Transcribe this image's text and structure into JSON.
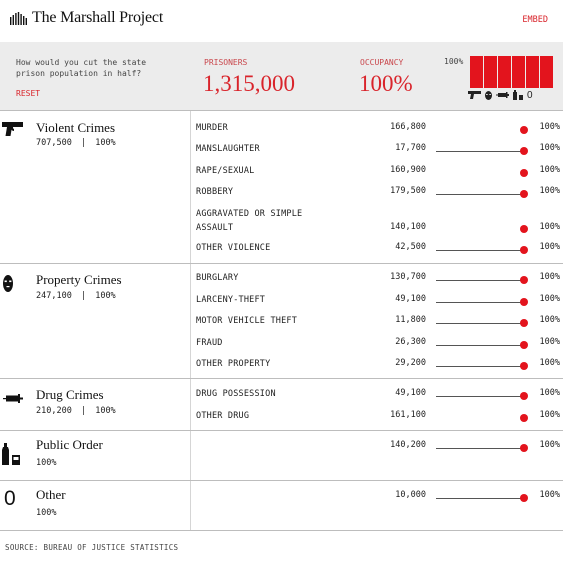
{
  "header": {
    "logo_text": "The Marshall Project",
    "embed_label": "EMBED"
  },
  "control": {
    "question": "How would you cut the state prison population in half?",
    "reset_label": "RESET",
    "prisoners_label": "PRISONERS",
    "prisoners_value": "1,315,000",
    "occupancy_label": "OCCUPANCY",
    "occupancy_value": "100%",
    "chart_max_label": "100%",
    "bar_levels": [
      1.0,
      1.0,
      1.0,
      1.0,
      1.0,
      1.0
    ],
    "bar_icons": [
      "gun-icon",
      "mask-icon",
      "syringe-icon",
      "bottle-icon",
      "zero-icon"
    ],
    "zero_glyph": "0"
  },
  "groups": [
    {
      "name": "Violent Crimes",
      "count": "707,500",
      "sep": "|",
      "pct": "100%",
      "icon": "gun-icon",
      "rows": [
        {
          "label": "MURDER",
          "value": "166,800",
          "pct": "100%",
          "level": 1.0
        },
        {
          "label": "MANSLAUGHTER",
          "value": "17,700",
          "pct": "100%",
          "level": 1.0
        },
        {
          "label": "RAPE/SEXUAL",
          "value": "160,900",
          "pct": "100%",
          "level": 1.0
        },
        {
          "label": "ROBBERY",
          "value": "179,500",
          "pct": "100%",
          "level": 1.0
        },
        {
          "label": "AGGRAVATED OR SIMPLE ASSAULT",
          "value": "140,100",
          "pct": "100%",
          "level": 1.0
        },
        {
          "label": "OTHER VIOLENCE",
          "value": "42,500",
          "pct": "100%",
          "level": 1.0
        }
      ]
    },
    {
      "name": "Property Crimes",
      "count": "247,100",
      "sep": "|",
      "pct": "100%",
      "icon": "mask-icon",
      "rows": [
        {
          "label": "BURGLARY",
          "value": "130,700",
          "pct": "100%",
          "level": 1.0
        },
        {
          "label": "LARCENY-THEFT",
          "value": "49,100",
          "pct": "100%",
          "level": 1.0
        },
        {
          "label": "MOTOR VEHICLE THEFT",
          "value": "11,800",
          "pct": "100%",
          "level": 1.0
        },
        {
          "label": "FRAUD",
          "value": "26,300",
          "pct": "100%",
          "level": 1.0
        },
        {
          "label": "OTHER PROPERTY",
          "value": "29,200",
          "pct": "100%",
          "level": 1.0
        }
      ]
    },
    {
      "name": "Drug Crimes",
      "count": "210,200",
      "sep": "|",
      "pct": "100%",
      "icon": "syringe-icon",
      "rows": [
        {
          "label": "DRUG POSSESSION",
          "value": "49,100",
          "pct": "100%",
          "level": 1.0
        },
        {
          "label": "OTHER DRUG",
          "value": "161,100",
          "pct": "100%",
          "level": 1.0
        }
      ]
    },
    {
      "name": "Public Order",
      "pct": "100%",
      "icon": "bottle-icon",
      "rows": [
        {
          "label": "",
          "value": "140,200",
          "pct": "100%",
          "level": 1.0
        }
      ]
    },
    {
      "name": "Other",
      "pct": "100%",
      "icon": "zero-icon",
      "icon_glyph": "0",
      "rows": [
        {
          "label": "",
          "value": "10,000",
          "pct": "100%",
          "level": 1.0
        }
      ]
    }
  ],
  "footer": {
    "source": "SOURCE: BUREAU OF JUSTICE STATISTICS"
  },
  "colors": {
    "accent": "#e3141d",
    "panel_bg": "#ececec"
  }
}
